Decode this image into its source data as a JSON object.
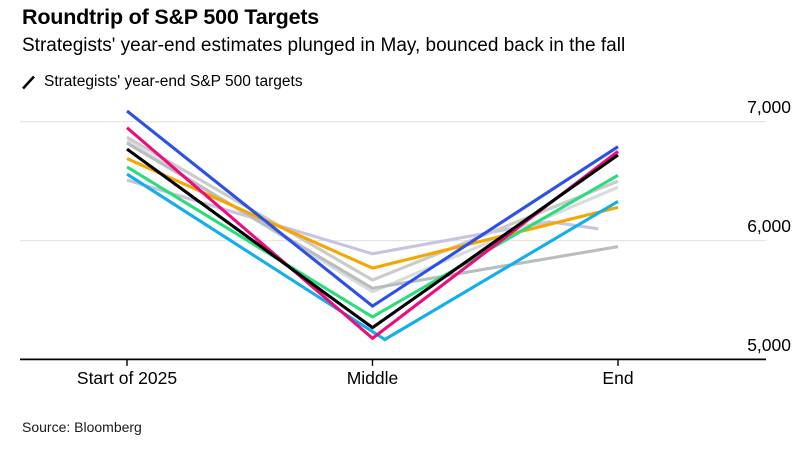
{
  "chart_data": {
    "type": "line",
    "title": "Roundtrip of S&P 500 Targets",
    "subtitle": "Strategists' year-end estimates plunged in May, bounced back in the fall",
    "legend": [
      "Strategists' year-end S&P 500 targets"
    ],
    "source": "Source: Bloomberg",
    "x_categories": [
      "Start of 2025",
      "Middle",
      "End"
    ],
    "x_tick_positions": [
      0,
      1,
      2
    ],
    "y_ticks": [
      7000,
      6000,
      5000
    ],
    "y_tick_labels": [
      "7,000",
      "6,000",
      "5,000"
    ],
    "ylim": [
      4980,
      7150
    ],
    "grid": "horizontal",
    "legend_position": "top-left",
    "series": [
      {
        "name": "strategist-lavender",
        "color": "#C8C4DF",
        "points": [
          [
            0,
            6510
          ],
          [
            1,
            5890
          ],
          [
            1.72,
            6160
          ],
          [
            1.92,
            6100
          ]
        ]
      },
      {
        "name": "strategist-pale-gray",
        "color": "#D8DCDA",
        "points": [
          [
            0,
            6840
          ],
          [
            1,
            5570
          ],
          [
            2,
            6450
          ]
        ]
      },
      {
        "name": "strategist-silver",
        "color": "#B8BDBD",
        "points": [
          [
            0,
            6820
          ],
          [
            1,
            5600
          ],
          [
            2,
            5950
          ]
        ]
      },
      {
        "name": "strategist-light-gray",
        "color": "#CBCBCB",
        "points": [
          [
            0,
            6870
          ],
          [
            1,
            5670
          ],
          [
            2,
            6500
          ]
        ]
      },
      {
        "name": "strategist-orange",
        "color": "#F7A600",
        "points": [
          [
            0,
            6690
          ],
          [
            1,
            5770
          ],
          [
            2,
            6280
          ]
        ]
      },
      {
        "name": "strategist-cyan",
        "color": "#12AEED",
        "points": [
          [
            0,
            6560
          ],
          [
            1.05,
            5170
          ],
          [
            2,
            6330
          ]
        ]
      },
      {
        "name": "strategist-green",
        "color": "#2BDC7C",
        "points": [
          [
            0,
            6620
          ],
          [
            1,
            5360
          ],
          [
            2,
            6550
          ]
        ]
      },
      {
        "name": "strategist-magenta",
        "color": "#EE0B7E",
        "points": [
          [
            0,
            6950
          ],
          [
            1,
            5180
          ],
          [
            2,
            6750
          ]
        ]
      },
      {
        "name": "strategist-black",
        "color": "#000000",
        "points": [
          [
            0,
            6770
          ],
          [
            1,
            5270
          ],
          [
            2,
            6720
          ]
        ]
      },
      {
        "name": "strategist-blue",
        "color": "#2D50E6",
        "points": [
          [
            0,
            7090
          ],
          [
            1,
            5450
          ],
          [
            2,
            6790
          ]
        ]
      }
    ]
  }
}
